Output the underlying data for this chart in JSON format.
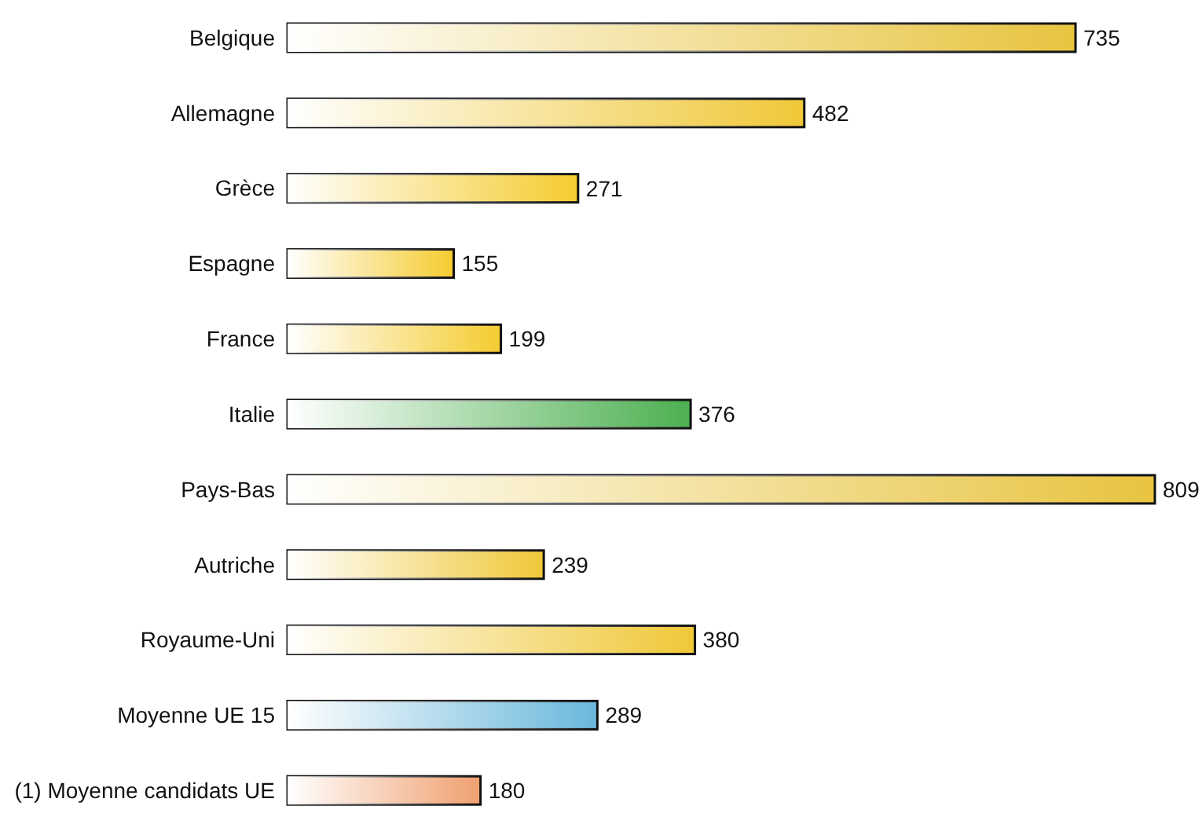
{
  "chart_data": {
    "type": "bar",
    "orientation": "horizontal",
    "data_labels": true,
    "categories": [
      "Belgique",
      "Allemagne",
      "Grèce",
      "Espagne",
      "France",
      "Italie",
      "Pays-Bas",
      "Autriche",
      "Royaume-Uni",
      "Moyenne UE 15",
      "(1) Moyenne candidats UE"
    ],
    "values": [
      735,
      482,
      271,
      155,
      199,
      376,
      809,
      239,
      380,
      289,
      180
    ],
    "colors": [
      "#e8c440",
      "#f0c838",
      "#f5cc30",
      "#f5cc30",
      "#f5cc30",
      "#4cb050",
      "#e8c440",
      "#f0c838",
      "#f0c838",
      "#6ab8dc",
      "#f0a070"
    ]
  }
}
